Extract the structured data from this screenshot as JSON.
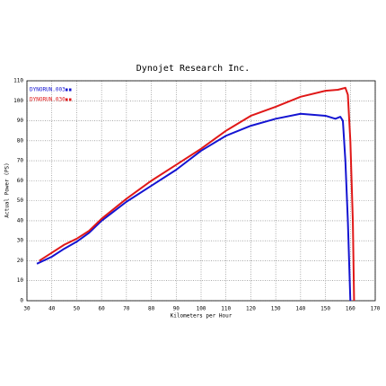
{
  "chart_data": {
    "type": "line",
    "title": "Dynojet Research Inc.",
    "xlabel": "Kilometers per Hour",
    "ylabel": "Actual Power (PS)",
    "xlim": [
      30,
      170
    ],
    "xticks": [
      30,
      40,
      50,
      60,
      70,
      80,
      90,
      100,
      110,
      120,
      130,
      140,
      150,
      160,
      170
    ],
    "ylim": [
      0,
      110
    ],
    "yticks": [
      0,
      10,
      20,
      30,
      40,
      50,
      60,
      70,
      80,
      90,
      100,
      110
    ],
    "grid": true,
    "series": [
      {
        "name": "DYNORUN.003",
        "color": "#1414d2",
        "x": [
          34,
          40,
          45,
          50,
          55,
          60,
          70,
          80,
          90,
          100,
          110,
          120,
          130,
          140,
          150,
          154,
          156,
          157,
          158,
          159,
          160
        ],
        "values": [
          18.5,
          22,
          26,
          29.5,
          34,
          40,
          49.5,
          57.5,
          65.5,
          75,
          82.5,
          87.5,
          91,
          93.5,
          92.5,
          91,
          92,
          90,
          70,
          40,
          0
        ]
      },
      {
        "name": "DYNORUN.030",
        "color": "#e01818",
        "x": [
          35,
          40,
          45,
          50,
          55,
          60,
          70,
          80,
          90,
          100,
          110,
          120,
          130,
          140,
          150,
          155,
          158,
          159,
          160,
          161,
          161.5
        ],
        "values": [
          20,
          24,
          28,
          31,
          35,
          41,
          51,
          60,
          68,
          76,
          85,
          92.5,
          97,
          102,
          105,
          105.5,
          106.5,
          103,
          80,
          40,
          0
        ]
      }
    ]
  }
}
